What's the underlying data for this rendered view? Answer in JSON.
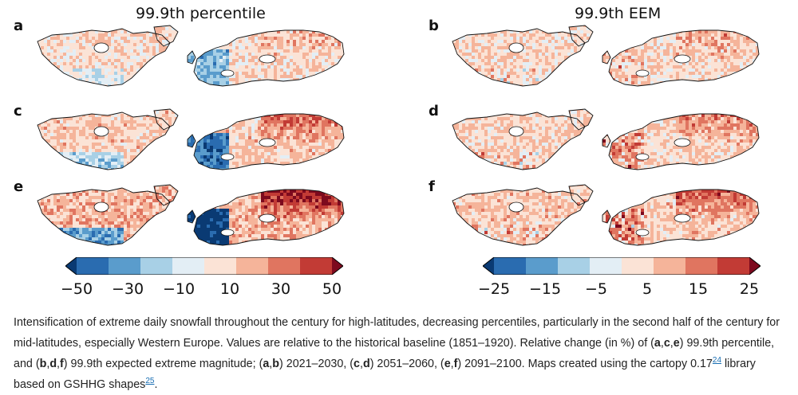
{
  "figure": {
    "column_titles": [
      "99.9th percentile",
      "99.9th EEM"
    ],
    "panels": [
      {
        "letter": "a",
        "column": 0,
        "row": 0,
        "intensity": 0.25
      },
      {
        "letter": "b",
        "column": 1,
        "row": 0,
        "intensity": 0.3
      },
      {
        "letter": "c",
        "column": 0,
        "row": 1,
        "intensity": 0.55
      },
      {
        "letter": "d",
        "column": 1,
        "row": 1,
        "intensity": 0.45
      },
      {
        "letter": "e",
        "column": 0,
        "row": 2,
        "intensity": 0.95
      },
      {
        "letter": "f",
        "column": 1,
        "row": 2,
        "intensity": 0.6
      }
    ],
    "colorbars": [
      {
        "ticks": [
          "−50",
          "−30",
          "−10",
          "10",
          "30",
          "50"
        ]
      },
      {
        "ticks": [
          "−25",
          "−15",
          "−5",
          "5",
          "15",
          "25"
        ]
      }
    ],
    "colors": [
      "#0a3a73",
      "#2a6cb0",
      "#5a9ccc",
      "#a8d0e6",
      "#e3eef5",
      "#fbe3d6",
      "#f5b49a",
      "#e07560",
      "#c23b35",
      "#7d0a1e"
    ]
  },
  "caption": {
    "p1": "Intensification of extreme daily snowfall throughout the century for high-latitudes, decreasing percentiles, particularly in the second half of the century for mid-latitudes, especially Western Europe. Values are relative to the historical baseline (1851–1920). Relative change (in %) of (",
    "b1": "a",
    "c1": ",",
    "b2": "c",
    "c2": ",",
    "b3": "e",
    "p2": ") 99.9th percentile, and (",
    "b4": "b",
    "c3": ",",
    "b5": "d",
    "c4": ",",
    "b6": "f",
    "p3": ") 99.9th expected extreme magnitude; (",
    "b7": "a",
    "c5": ",",
    "b8": "b",
    "p4": ") 2021–2030, (",
    "b9": "c",
    "c6": ",",
    "b10": "d",
    "p5": ") 2051–2060, (",
    "b11": "e",
    "c7": ",",
    "b12": "f",
    "p6": ") 2091–2100. Maps created using the cartopy 0.17",
    "ref1": "24",
    "p7": " library based on GSHHG shapes",
    "ref2": "25",
    "p8": "."
  }
}
